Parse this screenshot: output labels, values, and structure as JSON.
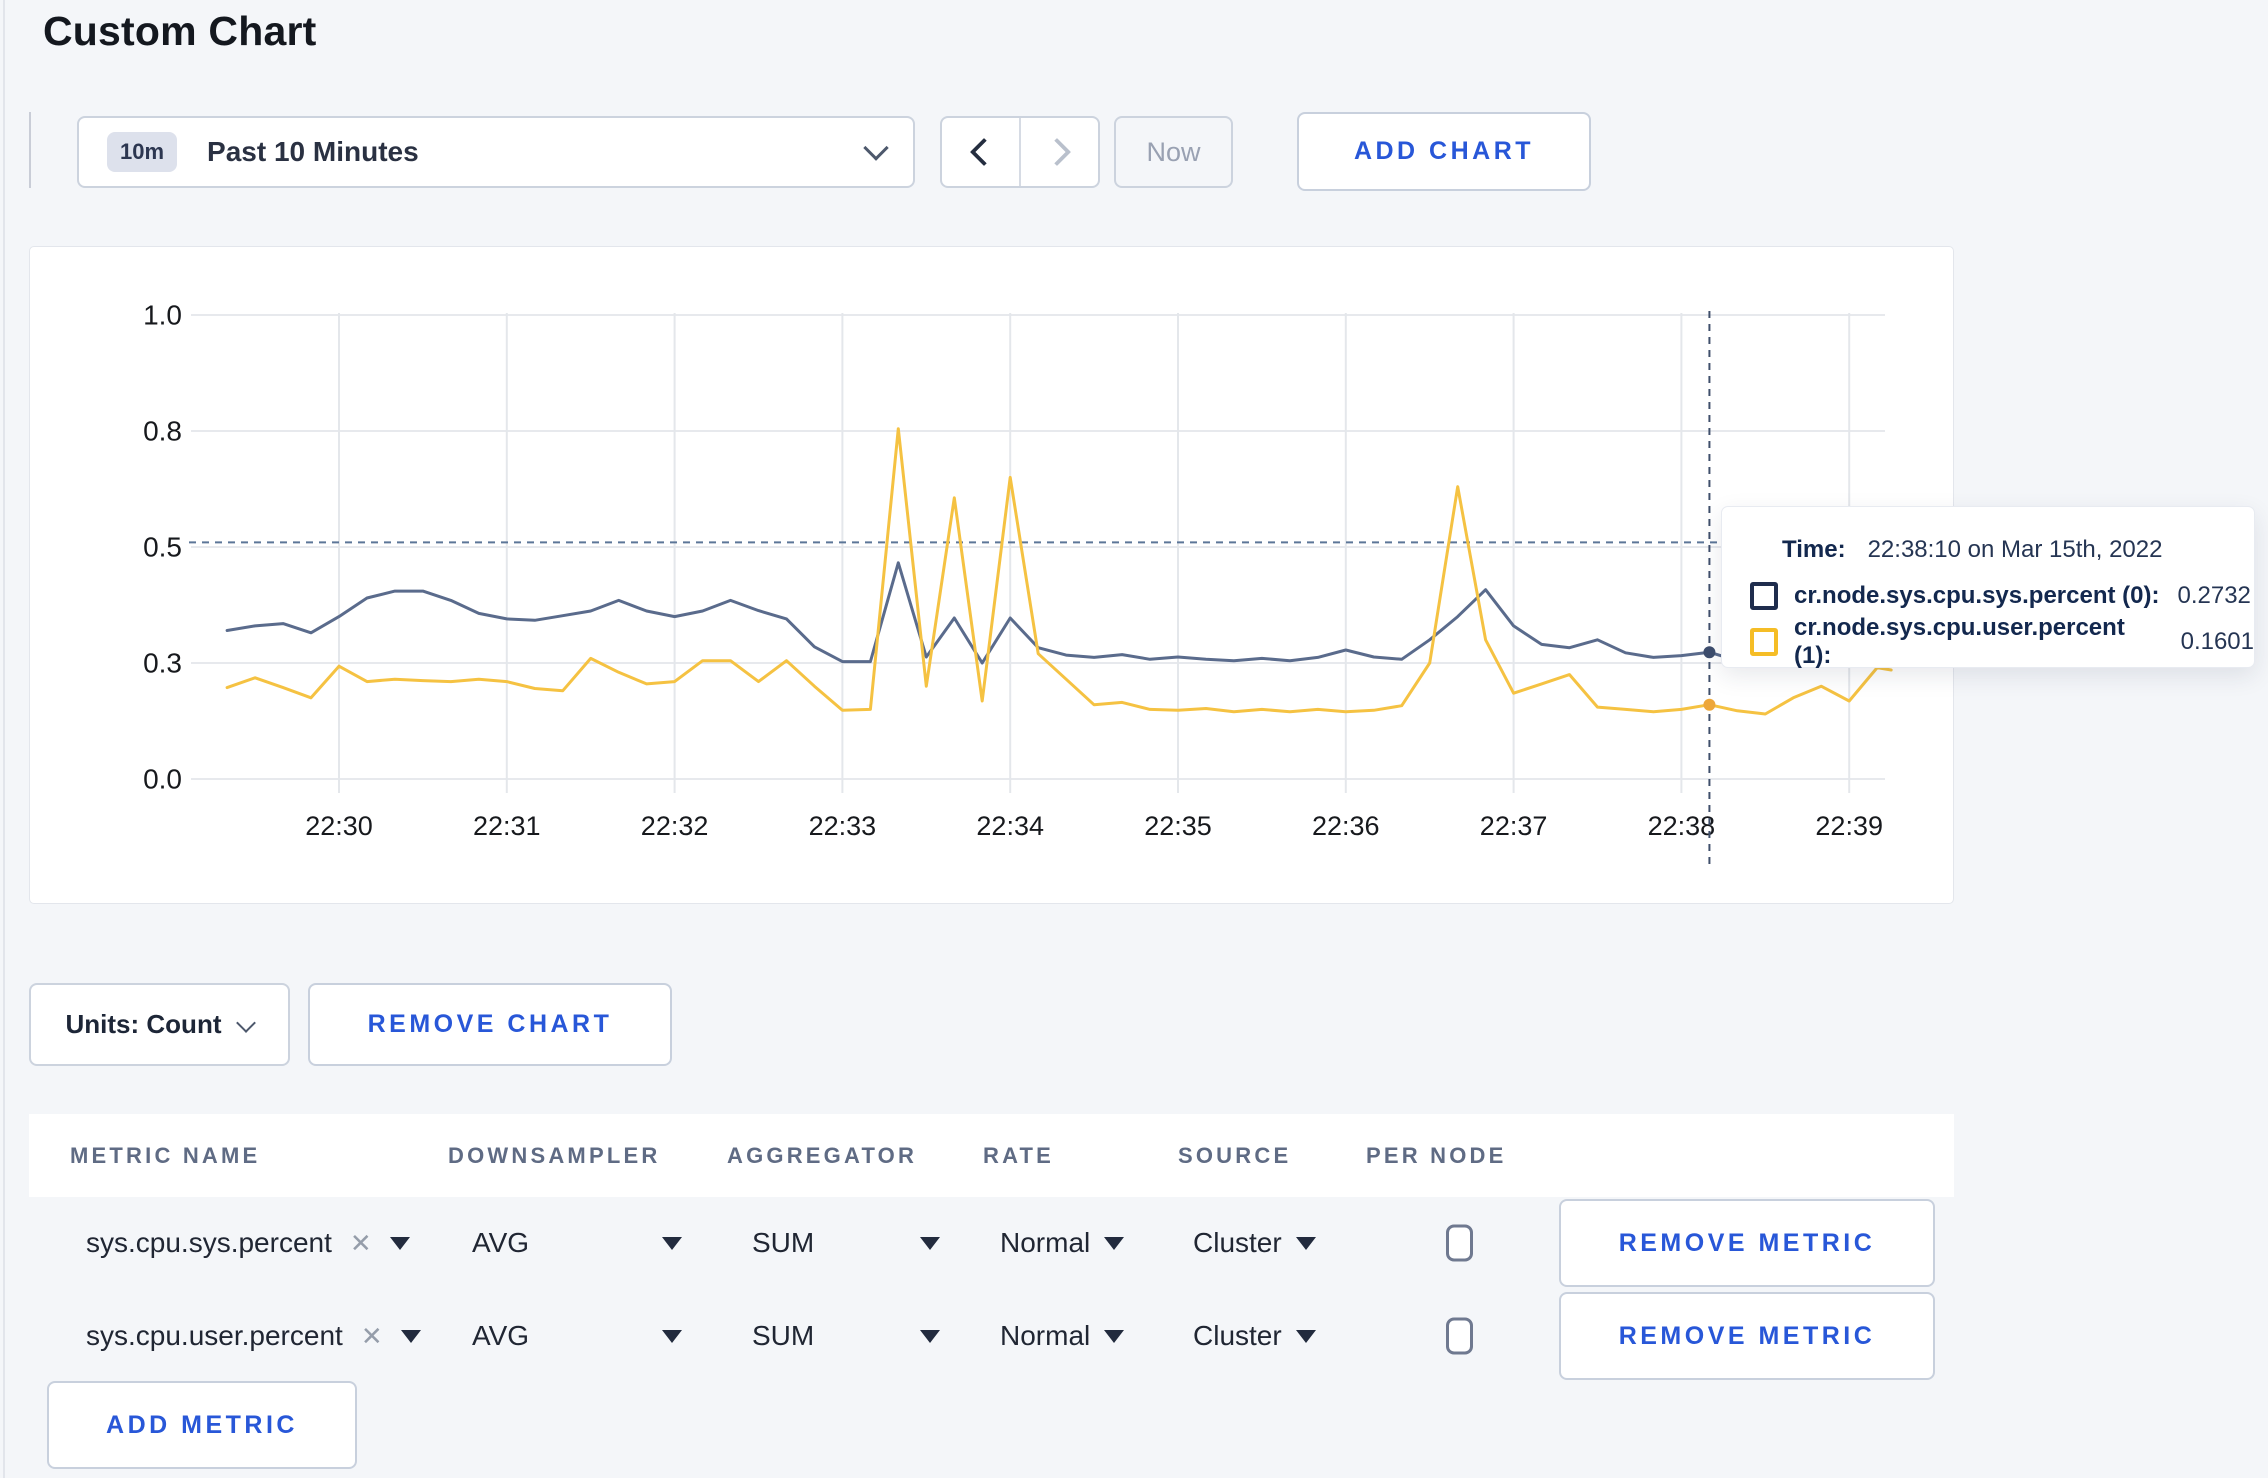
{
  "page": {
    "title": "Custom Chart"
  },
  "toolbar": {
    "time_badge": "10m",
    "time_label": "Past 10 Minutes",
    "now_label": "Now",
    "add_chart_label": "ADD CHART"
  },
  "chart": {
    "tooltip": {
      "time_label": "Time:",
      "time_value": "22:38:10 on Mar 15th, 2022",
      "series": [
        {
          "label": "cr.node.sys.cpu.sys.percent (0):",
          "value": "0.2732",
          "color": "#1f2d4d"
        },
        {
          "label": "cr.node.sys.cpu.user.percent (1):",
          "value": "0.1601",
          "color": "#f5bd26"
        }
      ]
    }
  },
  "chart_data": {
    "type": "line",
    "title": "",
    "xlabel": "",
    "ylabel": "",
    "x_unit": "minutes after 22:29",
    "x_ticks": [
      "22:30",
      "22:31",
      "22:32",
      "22:33",
      "22:34",
      "22:35",
      "22:36",
      "22:37",
      "22:38",
      "22:39"
    ],
    "ylim": [
      0,
      1
    ],
    "y_tick_values": [
      0,
      0.25,
      0.5,
      0.75,
      1.0
    ],
    "y_tick_labels": [
      "0.0",
      "0.3",
      "0.5",
      "0.8",
      "1.0"
    ],
    "grid": true,
    "legend_position": "tooltip",
    "crosshair": {
      "time": "22:38:10 on Mar 15th, 2022",
      "x_minutes": 9.167,
      "hline_value": 0.51,
      "markers": [
        {
          "series": 0,
          "value": 0.2732
        },
        {
          "series": 1,
          "value": 0.1601
        }
      ]
    },
    "series": [
      {
        "name": "cr.node.sys.cpu.sys.percent (0)",
        "color": "#5a6b8c",
        "points": [
          [
            0.333,
            0.32
          ],
          [
            0.5,
            0.33
          ],
          [
            0.667,
            0.335
          ],
          [
            0.833,
            0.315
          ],
          [
            1.0,
            0.35
          ],
          [
            1.167,
            0.39
          ],
          [
            1.333,
            0.405
          ],
          [
            1.5,
            0.405
          ],
          [
            1.667,
            0.385
          ],
          [
            1.833,
            0.357
          ],
          [
            2.0,
            0.345
          ],
          [
            2.167,
            0.342
          ],
          [
            2.333,
            0.352
          ],
          [
            2.5,
            0.362
          ],
          [
            2.667,
            0.385
          ],
          [
            2.833,
            0.362
          ],
          [
            3.0,
            0.35
          ],
          [
            3.167,
            0.362
          ],
          [
            3.333,
            0.385
          ],
          [
            3.5,
            0.363
          ],
          [
            3.667,
            0.345
          ],
          [
            3.833,
            0.285
          ],
          [
            4.0,
            0.253
          ],
          [
            4.167,
            0.253
          ],
          [
            4.333,
            0.466
          ],
          [
            4.5,
            0.263
          ],
          [
            4.667,
            0.347
          ],
          [
            4.833,
            0.25
          ],
          [
            5.0,
            0.347
          ],
          [
            5.167,
            0.283
          ],
          [
            5.333,
            0.267
          ],
          [
            5.5,
            0.262
          ],
          [
            5.667,
            0.268
          ],
          [
            5.833,
            0.258
          ],
          [
            6.0,
            0.263
          ],
          [
            6.167,
            0.258
          ],
          [
            6.333,
            0.255
          ],
          [
            6.5,
            0.26
          ],
          [
            6.667,
            0.255
          ],
          [
            6.833,
            0.262
          ],
          [
            7.0,
            0.278
          ],
          [
            7.167,
            0.263
          ],
          [
            7.333,
            0.258
          ],
          [
            7.5,
            0.3
          ],
          [
            7.667,
            0.35
          ],
          [
            7.833,
            0.408
          ],
          [
            8.0,
            0.33
          ],
          [
            8.167,
            0.29
          ],
          [
            8.333,
            0.283
          ],
          [
            8.5,
            0.3
          ],
          [
            8.667,
            0.272
          ],
          [
            8.833,
            0.262
          ],
          [
            9.0,
            0.266
          ],
          [
            9.167,
            0.2732
          ],
          [
            9.333,
            0.255
          ],
          [
            9.5,
            0.26
          ],
          [
            9.667,
            0.27
          ],
          [
            9.833,
            0.268
          ],
          [
            10.0,
            0.262
          ],
          [
            10.167,
            0.272
          ],
          [
            10.25,
            0.288
          ]
        ]
      },
      {
        "name": "cr.node.sys.cpu.user.percent (1)",
        "color": "#f5c242",
        "points": [
          [
            0.333,
            0.197
          ],
          [
            0.5,
            0.218
          ],
          [
            0.667,
            0.197
          ],
          [
            0.833,
            0.175
          ],
          [
            1.0,
            0.243
          ],
          [
            1.167,
            0.21
          ],
          [
            1.333,
            0.215
          ],
          [
            1.5,
            0.212
          ],
          [
            1.667,
            0.21
          ],
          [
            1.833,
            0.215
          ],
          [
            2.0,
            0.21
          ],
          [
            2.167,
            0.195
          ],
          [
            2.333,
            0.19
          ],
          [
            2.5,
            0.26
          ],
          [
            2.667,
            0.23
          ],
          [
            2.833,
            0.205
          ],
          [
            3.0,
            0.21
          ],
          [
            3.167,
            0.255
          ],
          [
            3.333,
            0.255
          ],
          [
            3.5,
            0.21
          ],
          [
            3.667,
            0.255
          ],
          [
            3.833,
            0.2
          ],
          [
            4.0,
            0.148
          ],
          [
            4.167,
            0.15
          ],
          [
            4.333,
            0.755
          ],
          [
            4.5,
            0.2
          ],
          [
            4.667,
            0.606
          ],
          [
            4.833,
            0.168
          ],
          [
            5.0,
            0.65
          ],
          [
            5.167,
            0.27
          ],
          [
            5.333,
            0.215
          ],
          [
            5.5,
            0.16
          ],
          [
            5.667,
            0.165
          ],
          [
            5.833,
            0.15
          ],
          [
            6.0,
            0.148
          ],
          [
            6.167,
            0.152
          ],
          [
            6.333,
            0.145
          ],
          [
            6.5,
            0.15
          ],
          [
            6.667,
            0.145
          ],
          [
            6.833,
            0.15
          ],
          [
            7.0,
            0.145
          ],
          [
            7.167,
            0.148
          ],
          [
            7.333,
            0.158
          ],
          [
            7.5,
            0.25
          ],
          [
            7.667,
            0.63
          ],
          [
            7.833,
            0.3
          ],
          [
            8.0,
            0.185
          ],
          [
            8.167,
            0.205
          ],
          [
            8.333,
            0.225
          ],
          [
            8.5,
            0.155
          ],
          [
            8.667,
            0.15
          ],
          [
            8.833,
            0.145
          ],
          [
            9.0,
            0.15
          ],
          [
            9.167,
            0.1601
          ],
          [
            9.333,
            0.147
          ],
          [
            9.5,
            0.14
          ],
          [
            9.667,
            0.175
          ],
          [
            9.833,
            0.2
          ],
          [
            10.0,
            0.168
          ],
          [
            10.167,
            0.24
          ],
          [
            10.25,
            0.235
          ]
        ]
      }
    ]
  },
  "units_bar": {
    "units_label": "Units: Count",
    "remove_chart_label": "REMOVE CHART"
  },
  "metrics_table": {
    "headers": [
      "METRIC NAME",
      "DOWNSAMPLER",
      "AGGREGATOR",
      "RATE",
      "SOURCE",
      "PER NODE"
    ],
    "rows": [
      {
        "name": "sys.cpu.sys.percent",
        "downsampler": "AVG",
        "aggregator": "SUM",
        "rate": "Normal",
        "source": "Cluster",
        "per_node_checked": false,
        "remove_label": "REMOVE METRIC"
      },
      {
        "name": "sys.cpu.user.percent",
        "downsampler": "AVG",
        "aggregator": "SUM",
        "rate": "Normal",
        "source": "Cluster",
        "per_node_checked": false,
        "remove_label": "REMOVE METRIC"
      }
    ],
    "add_metric_label": "ADD METRIC"
  }
}
